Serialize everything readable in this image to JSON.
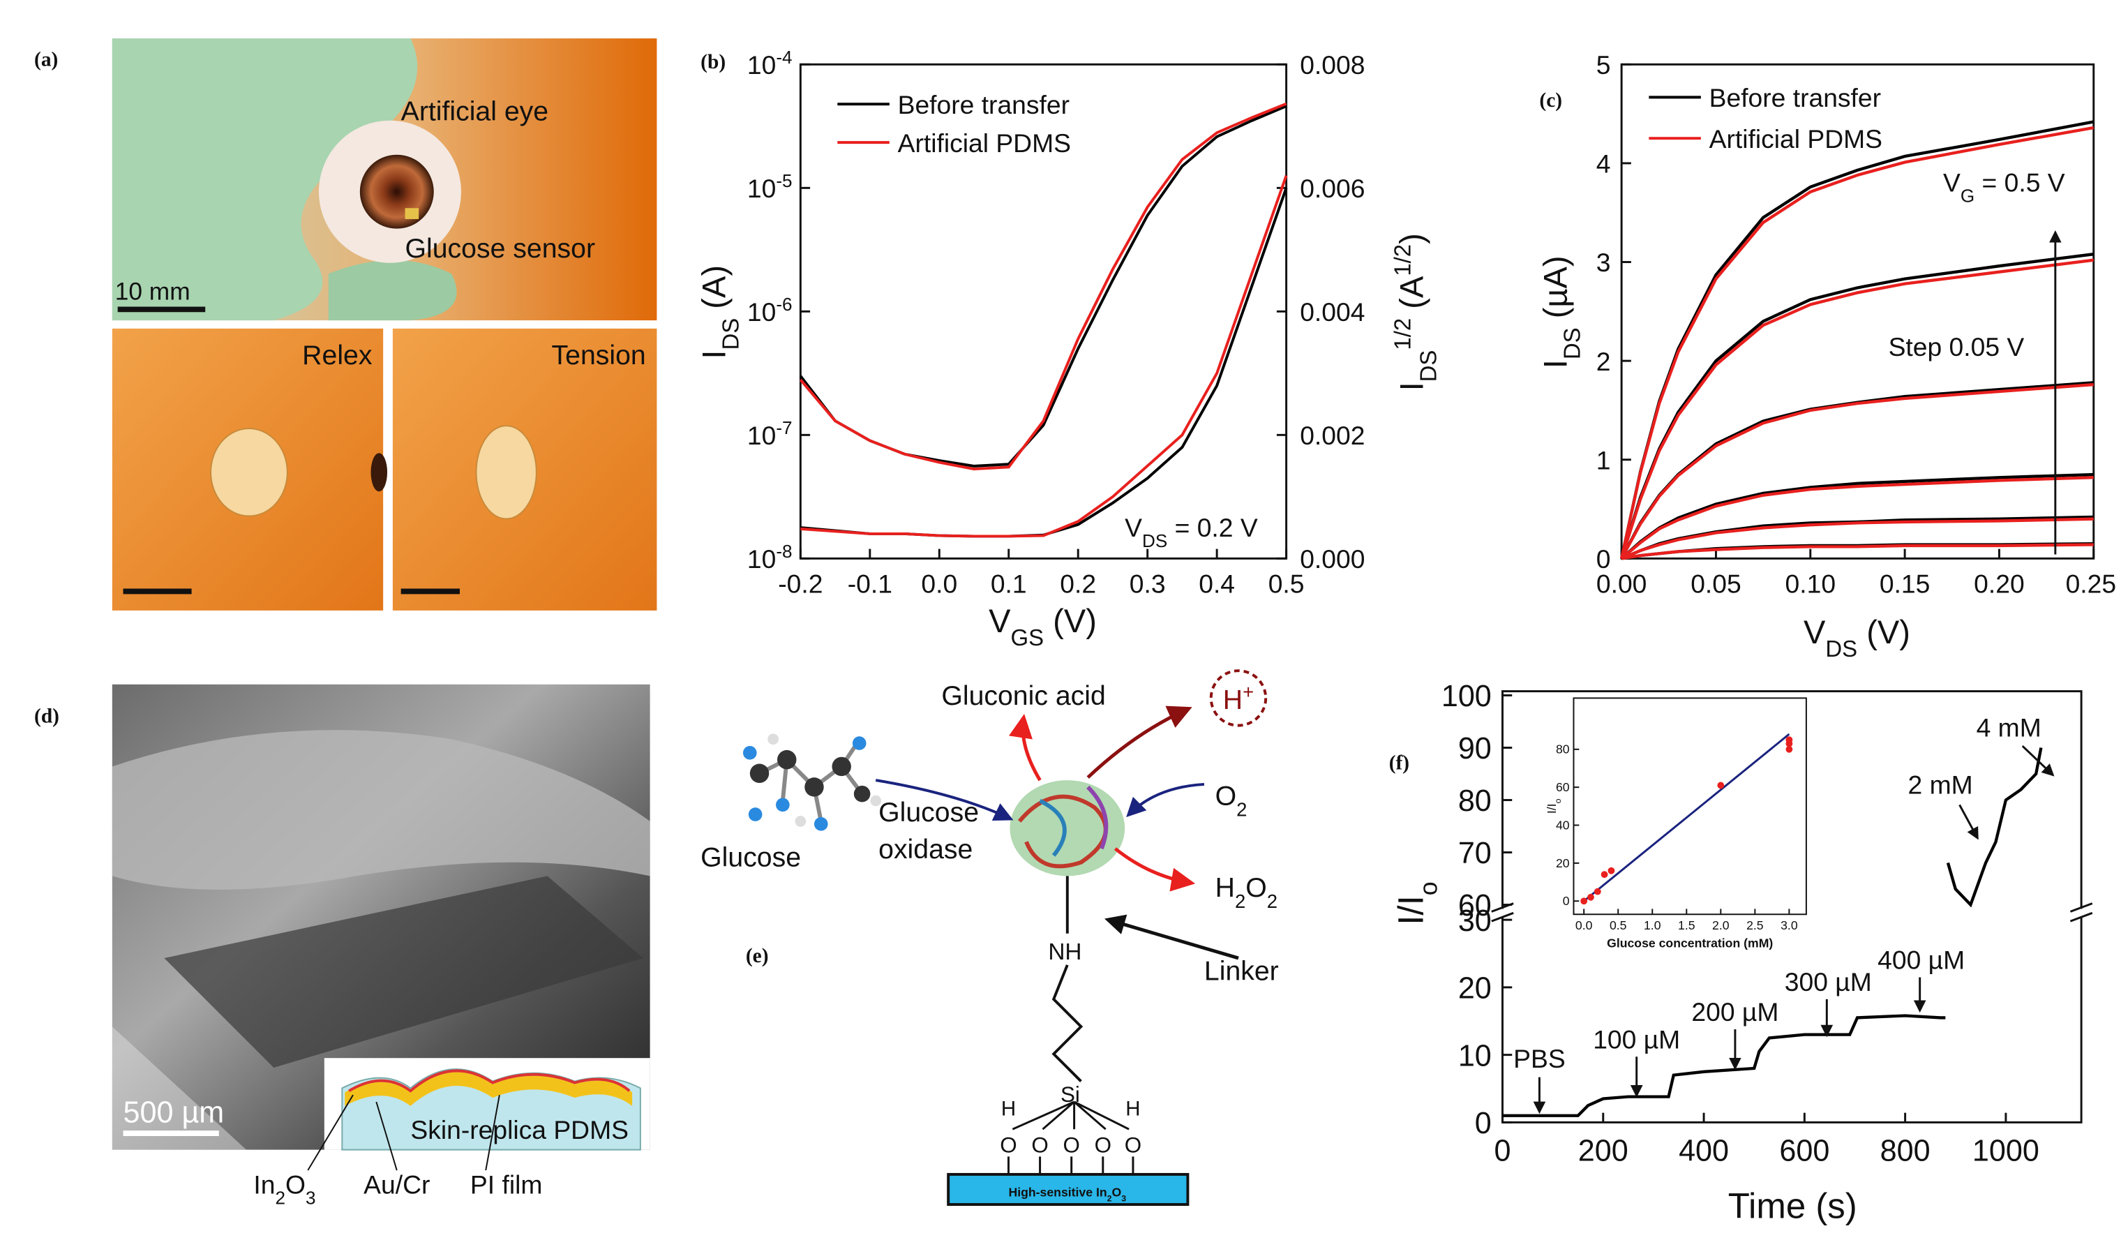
{
  "panel_labels": [
    "(a)",
    "(b)",
    "(c)",
    "(d)",
    "(e)",
    "(f)"
  ],
  "photos": {
    "artificial_eye": "Artificial eye",
    "glucose_sensor": "Glucose sensor",
    "scale_a": "10 mm",
    "relax": "Relex",
    "tension": "Tension",
    "scale_d": "500 µm",
    "substrate": "Skin-replica PDMS",
    "layers": [
      [
        "In",
        "2",
        "O",
        "3"
      ],
      [
        "Au/Cr"
      ],
      [
        "PI film"
      ]
    ]
  },
  "diagram": {
    "gluconic_acid": "Gluconic acid",
    "proton": [
      "H",
      "+"
    ],
    "glucose": "Glucose",
    "enzyme": [
      "Glucose",
      "oxidase"
    ],
    "oxygen": [
      "O",
      "2"
    ],
    "peroxide": [
      "H",
      "2",
      "O",
      "2"
    ],
    "amine": "NH",
    "linker": "Linker",
    "silicon": "Si",
    "hydroxyl_h": [
      "H",
      "H"
    ],
    "oxygens": [
      "O",
      "O",
      "O",
      "O",
      "O"
    ],
    "substrate": [
      "High-sensitive In",
      "2",
      "O",
      "3"
    ]
  },
  "chart_data": [
    {
      "type": "line",
      "x_label": [
        "V",
        "GS",
        " (V)"
      ],
      "y_label": [
        "I",
        "DS",
        " (A)"
      ],
      "y2_label": [
        "I",
        "DS",
        "1/2",
        " (A",
        "1/2",
        ")"
      ],
      "annotation": [
        "V",
        "DS",
        " = 0.2 V"
      ],
      "x": [
        -0.2,
        -0.15,
        -0.1,
        -0.05,
        0,
        0.05,
        0.1,
        0.15,
        0.2,
        0.25,
        0.3,
        0.35,
        0.4,
        0.45,
        0.5
      ],
      "xlim": [
        -0.2,
        0.5
      ],
      "xticks": [
        -0.2,
        -0.1,
        {
          "value": 0,
          "label": "0.0"
        },
        0.1,
        0.2,
        0.3,
        0.4,
        0.5
      ],
      "log_y": true,
      "ylim": [
        1e-08,
        0.0001
      ],
      "yticks": [
        {
          "value": 1e-08,
          "label": "10-8"
        },
        {
          "value": 1e-07,
          "label": "10-7"
        },
        {
          "value": 1e-06,
          "label": "10-6"
        },
        {
          "value": 1e-05,
          "label": "10-5"
        },
        {
          "value": 0.0001,
          "label": "10-4"
        }
      ],
      "y2lim": [
        0,
        0.008
      ],
      "y2ticks": [
        {
          "value": 0,
          "label": "0.000"
        },
        {
          "value": 0.002,
          "label": "0.002"
        },
        {
          "value": 0.004,
          "label": "0.004"
        },
        {
          "value": 0.006,
          "label": "0.006"
        },
        {
          "value": 0.008,
          "label": "0.008"
        }
      ],
      "legend": "upper left",
      "series": [
        {
          "name": "Before transfer",
          "color": "#000000",
          "values": [
            3e-07,
            1.3e-07,
            9e-08,
            7e-08,
            6.2e-08,
            5.6e-08,
            5.8e-08,
            1.2e-07,
            5e-07,
            1.8e-06,
            6e-06,
            1.5e-05,
            2.6e-05,
            3.5e-05,
            4.6e-05
          ],
          "y2_values": [
            0.0005,
            0.00045,
            0.0004,
            0.0004,
            0.00037,
            0.00036,
            0.00036,
            0.00038,
            0.00055,
            0.0009,
            0.0013,
            0.0018,
            0.0028,
            0.0044,
            0.006
          ]
        },
        {
          "name": "Artificial PDMS",
          "color": "#e8201e",
          "values": [
            2.8e-07,
            1.3e-07,
            9e-08,
            7e-08,
            6e-08,
            5.3e-08,
            5.5e-08,
            1.3e-07,
            6e-07,
            2.2e-06,
            7e-06,
            1.7e-05,
            2.8e-05,
            3.7e-05,
            4.8e-05
          ],
          "y2_values": [
            0.00048,
            0.00044,
            0.0004,
            0.0004,
            0.00037,
            0.00036,
            0.00036,
            0.00037,
            0.0006,
            0.001,
            0.0015,
            0.002,
            0.003,
            0.0046,
            0.0062
          ]
        }
      ]
    },
    {
      "type": "line",
      "x_label": [
        "V",
        "DS",
        " (V)"
      ],
      "y_label": [
        "I",
        "DS",
        " (µA)"
      ],
      "gate_label": [
        "V",
        "G",
        " = 0.5 V"
      ],
      "step_label": "Step 0.05 V",
      "x": [
        0,
        0.01,
        0.02,
        0.03,
        0.05,
        0.075,
        0.1,
        0.125,
        0.15,
        0.2,
        0.25
      ],
      "xlim": [
        0,
        0.25
      ],
      "xticks": [
        {
          "value": 0,
          "label": "0.00"
        },
        {
          "value": 0.05,
          "label": "0.05"
        },
        {
          "value": 0.1,
          "label": "0.10"
        },
        {
          "value": 0.15,
          "label": "0.15"
        },
        {
          "value": 0.2,
          "label": "0.20"
        },
        {
          "value": 0.25,
          "label": "0.25"
        }
      ],
      "ylim": [
        0,
        5
      ],
      "yticks": [
        0,
        1,
        2,
        3,
        4,
        5
      ],
      "legend": "upper left",
      "series": [
        {
          "name": "Before transfer",
          "color": "#000000",
          "curves": [
            [
              0,
              0.88,
              1.59,
              2.12,
              2.87,
              3.45,
              3.76,
              3.93,
              4.07,
              4.24,
              4.42
            ],
            [
              0,
              0.62,
              1.11,
              1.48,
              2.0,
              2.4,
              2.62,
              2.74,
              2.83,
              2.96,
              3.08
            ],
            [
              0,
              0.36,
              0.64,
              0.85,
              1.16,
              1.39,
              1.51,
              1.58,
              1.64,
              1.71,
              1.78
            ],
            [
              0,
              0.17,
              0.31,
              0.41,
              0.55,
              0.66,
              0.72,
              0.76,
              0.78,
              0.82,
              0.85
            ],
            [
              0,
              0.08,
              0.15,
              0.2,
              0.27,
              0.33,
              0.36,
              0.37,
              0.39,
              0.4,
              0.42
            ],
            [
              0,
              0.03,
              0.05,
              0.07,
              0.1,
              0.12,
              0.13,
              0.13,
              0.14,
              0.14,
              0.15
            ]
          ]
        },
        {
          "name": "Artificial PDMS",
          "color": "#e8201e",
          "curves": [
            [
              0,
              0.87,
              1.57,
              2.09,
              2.83,
              3.4,
              3.71,
              3.88,
              4.01,
              4.19,
              4.36
            ],
            [
              0,
              0.6,
              1.09,
              1.45,
              1.96,
              2.36,
              2.57,
              2.69,
              2.78,
              2.9,
              3.02
            ],
            [
              0,
              0.35,
              0.63,
              0.84,
              1.14,
              1.37,
              1.5,
              1.57,
              1.62,
              1.69,
              1.76
            ],
            [
              0,
              0.16,
              0.3,
              0.39,
              0.53,
              0.64,
              0.7,
              0.73,
              0.75,
              0.79,
              0.82
            ],
            [
              0,
              0.08,
              0.14,
              0.19,
              0.26,
              0.31,
              0.34,
              0.36,
              0.37,
              0.38,
              0.4
            ],
            [
              0,
              0.03,
              0.05,
              0.07,
              0.09,
              0.11,
              0.12,
              0.12,
              0.13,
              0.13,
              0.14
            ]
          ]
        }
      ]
    },
    {
      "type": "line",
      "x_label": "Time (s)",
      "y_label": [
        "I/I",
        "o"
      ],
      "x": [
        0,
        150,
        170,
        200,
        250,
        330,
        340,
        400,
        500,
        510,
        530,
        600,
        690,
        705,
        800,
        870,
        880,
        882,
        885,
        900,
        930,
        960,
        980,
        1000,
        1030,
        1060,
        1070
      ],
      "values": [
        1,
        1,
        2.5,
        3.5,
        3.8,
        3.8,
        7,
        7.5,
        8,
        10.5,
        12.5,
        13,
        13,
        15.5,
        15.8,
        15.5,
        15.5,
        null,
        68,
        63,
        60,
        68,
        72,
        80,
        82,
        85,
        90
      ],
      "color": "#000000",
      "xlim": [
        0,
        1150
      ],
      "xticks": [
        0,
        200,
        400,
        600,
        800,
        1000
      ],
      "ylim": [
        0,
        100
      ],
      "ybreak": [
        30,
        60
      ],
      "yticks": [
        0,
        10,
        20,
        30,
        60,
        70,
        80,
        90,
        100
      ],
      "annotations": [
        "PBS",
        "100 µM",
        "200 µM",
        "300 µM",
        "400 µM",
        "2 mM",
        "4 mM"
      ]
    },
    {
      "type": "scatter",
      "x_label": "Glucose concentration (mM)",
      "y_label": [
        "I/I",
        "o"
      ],
      "x": [
        0,
        0.1,
        0.2,
        0.3,
        0.4,
        2,
        3,
        3,
        3
      ],
      "values": [
        0,
        2,
        5,
        14,
        16,
        61,
        80,
        83,
        85
      ],
      "color": "#e8201e",
      "fit": {
        "x": [
          0,
          3
        ],
        "values": [
          0,
          88
        ],
        "color": "#1a237e"
      },
      "xlim": [
        -0.15,
        3.25
      ],
      "xticks": [
        {
          "value": 0,
          "label": "0.0"
        },
        0.5,
        {
          "value": 1,
          "label": "1.0"
        },
        1.5,
        {
          "value": 2,
          "label": "2.0"
        },
        2.5,
        {
          "value": 3,
          "label": "3.0"
        }
      ],
      "ylim": [
        -7,
        107
      ],
      "yticks": [
        0,
        20,
        40,
        60,
        80
      ]
    }
  ]
}
